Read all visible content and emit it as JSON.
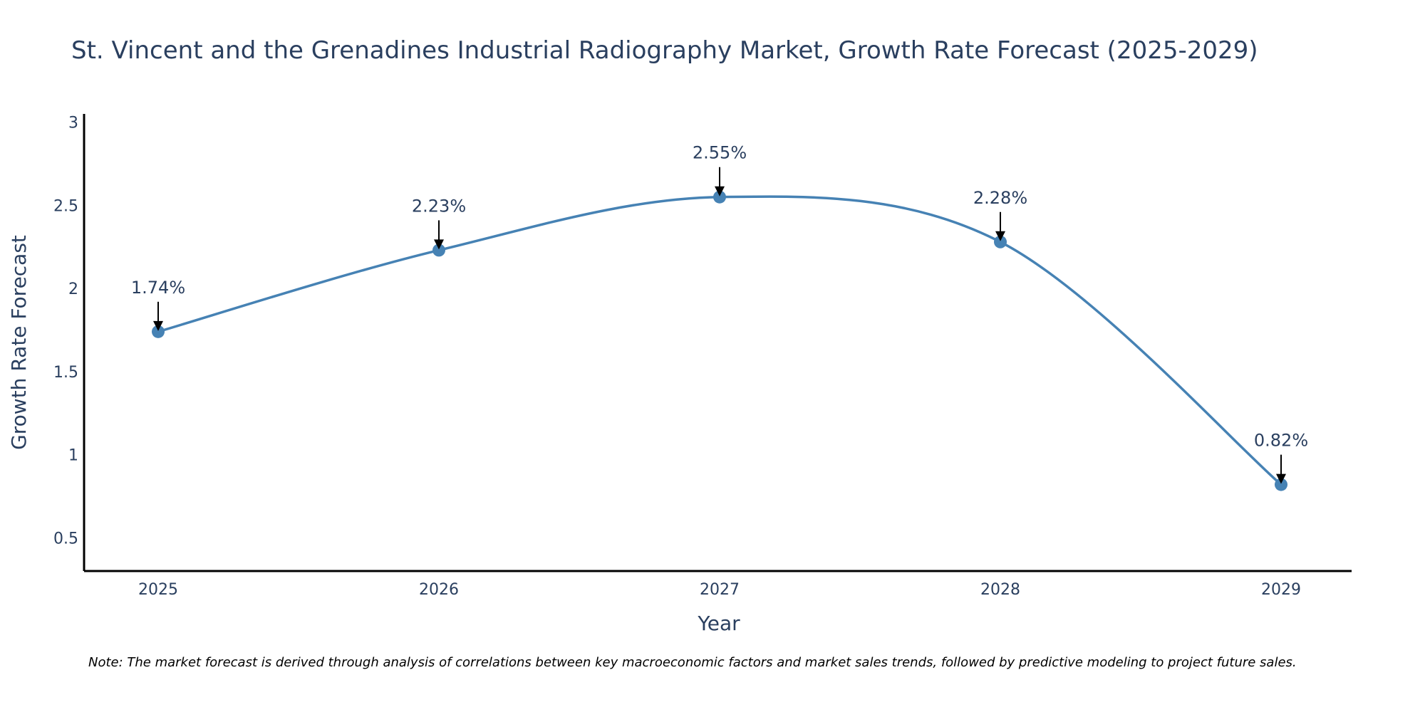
{
  "chart_data": {
    "type": "line",
    "title": "St. Vincent and the Grenadines Industrial Radiography Market, Growth Rate Forecast (2025-2029)",
    "xlabel": "Year",
    "ylabel": "Growth Rate Forecast",
    "categories": [
      "2025",
      "2026",
      "2027",
      "2028",
      "2029"
    ],
    "values": [
      1.74,
      2.23,
      2.55,
      2.28,
      0.82
    ],
    "data_labels": [
      "1.74%",
      "2.23%",
      "2.55%",
      "2.28%",
      "0.82%"
    ],
    "ylim": [
      0.3,
      3.05
    ],
    "yticks": [
      0.5,
      1,
      1.5,
      2,
      2.5,
      3
    ],
    "ytick_labels": [
      "0.5",
      "1",
      "1.5",
      "2",
      "2.5",
      "3"
    ],
    "line_shape": "spline",
    "grid": false,
    "legend": "none",
    "colors": {
      "line": "#4682b4",
      "marker": "#4682b4",
      "arrow": "#000000",
      "axis": "#000000",
      "text": "#2a3f5f"
    }
  },
  "note": "Note: The market forecast is derived through analysis of correlations between key macroeconomic factors and market sales trends, followed by predictive modeling to project future sales."
}
